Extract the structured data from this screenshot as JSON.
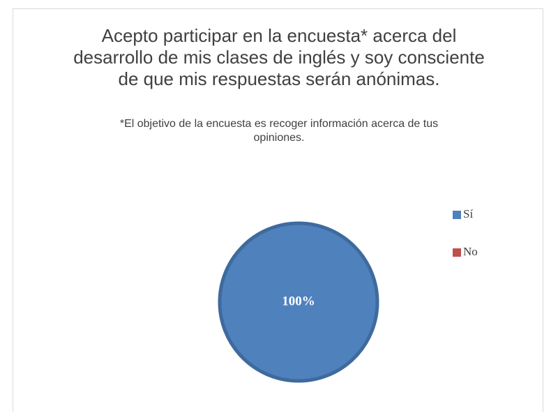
{
  "chart_data": {
    "type": "pie",
    "title": "Acepto participar en la encuesta* acerca del desarrollo de mis clases de inglés y soy consciente de que mis respuestas serán anónimas.",
    "subtitle": "*El objetivo de la encuesta es recoger información acerca de tus opiniones.",
    "categories": [
      "Sí",
      "No"
    ],
    "values": [
      100,
      0
    ],
    "value_labels": [
      "100%",
      null
    ],
    "colors": [
      "#4f81bd",
      "#c0504d"
    ],
    "legend": "right"
  }
}
